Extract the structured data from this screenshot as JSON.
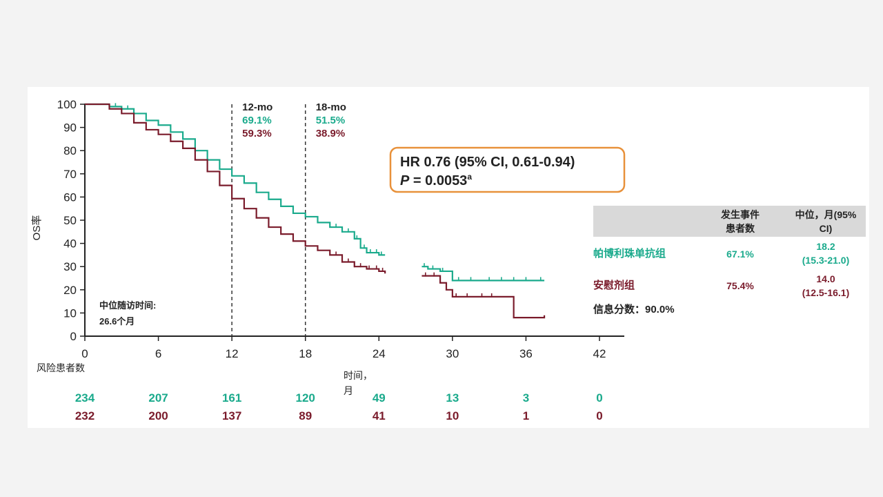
{
  "chart_data": {
    "type": "line",
    "subtype": "kaplan-meier",
    "ylabel": "OS率",
    "xlabel": "时间，月",
    "xlabel_lines": [
      "时间，",
      "月"
    ],
    "xlim": [
      0,
      42
    ],
    "ylim": [
      0,
      100
    ],
    "x_ticks": [
      0,
      6,
      12,
      18,
      24,
      30,
      36,
      42
    ],
    "y_ticks": [
      0,
      10,
      20,
      30,
      40,
      50,
      60,
      70,
      80,
      90,
      100
    ],
    "landmarks": [
      {
        "x": 12,
        "label": "12-mo",
        "values": [
          "69.1%",
          "59.3%"
        ]
      },
      {
        "x": 18,
        "label": "18-mo",
        "values": [
          "51.5%",
          "38.9%"
        ]
      }
    ],
    "hr_box": {
      "line1": "HR 0.76 (95% CI, 0.61-0.94)",
      "line2_prefix": "P",
      "line2_value": " = 0.0053",
      "line2_sup": "a"
    },
    "median_followup": {
      "label": "中位随访时间:",
      "value": "26.6个月"
    },
    "series": [
      {
        "name": "帕博利珠单抗组",
        "color": "#1aaa8c",
        "points": [
          [
            0,
            100
          ],
          [
            2,
            99
          ],
          [
            3,
            98
          ],
          [
            4,
            96
          ],
          [
            5,
            93
          ],
          [
            6,
            91
          ],
          [
            7,
            88
          ],
          [
            8,
            85
          ],
          [
            9,
            80
          ],
          [
            10,
            76
          ],
          [
            11,
            72
          ],
          [
            12,
            69.1
          ],
          [
            13,
            66
          ],
          [
            14,
            62
          ],
          [
            15,
            59
          ],
          [
            16,
            56
          ],
          [
            17,
            53
          ],
          [
            18,
            51.5
          ],
          [
            19,
            49
          ],
          [
            20,
            47
          ],
          [
            21,
            45
          ],
          [
            22,
            42
          ],
          [
            22.5,
            38
          ],
          [
            23,
            36
          ],
          [
            24,
            35
          ],
          [
            24.5,
            35
          ]
        ],
        "points2": [
          [
            27.5,
            30
          ],
          [
            28,
            29
          ],
          [
            29,
            28
          ],
          [
            30,
            24
          ],
          [
            31,
            24
          ],
          [
            36,
            24
          ],
          [
            37,
            24
          ],
          [
            37.5,
            24
          ]
        ],
        "censor": [
          2.5,
          3.5,
          20,
          20.5,
          21,
          21.5,
          22.2,
          22.8,
          23.3,
          23.8,
          24.2,
          27.7,
          28.4,
          29.2,
          30.5,
          31.5,
          33,
          34,
          35,
          36,
          37.2
        ],
        "risk": [
          "234",
          "207",
          "161",
          "120",
          "49",
          "13",
          "3",
          "0"
        ],
        "events": "67.1%",
        "median": "18.2",
        "ci": "(15.3-21.0)"
      },
      {
        "name": "安慰剂组",
        "color": "#7a1b2b",
        "points": [
          [
            0,
            100
          ],
          [
            2,
            98
          ],
          [
            3,
            96
          ],
          [
            4,
            92
          ],
          [
            5,
            89
          ],
          [
            6,
            87
          ],
          [
            7,
            84
          ],
          [
            8,
            81
          ],
          [
            9,
            76
          ],
          [
            10,
            71
          ],
          [
            11,
            65
          ],
          [
            12,
            59.3
          ],
          [
            13,
            55
          ],
          [
            14,
            51
          ],
          [
            15,
            47
          ],
          [
            16,
            44
          ],
          [
            17,
            41
          ],
          [
            18,
            38.9
          ],
          [
            19,
            37
          ],
          [
            20,
            35
          ],
          [
            21,
            32
          ],
          [
            22,
            30
          ],
          [
            23,
            29
          ],
          [
            24,
            28
          ],
          [
            24.5,
            27
          ]
        ],
        "points2": [
          [
            27.5,
            26
          ],
          [
            28,
            26
          ],
          [
            29,
            23
          ],
          [
            29.5,
            20
          ],
          [
            30,
            17
          ],
          [
            33,
            17
          ],
          [
            35,
            17
          ],
          [
            35,
            8
          ],
          [
            37,
            8
          ],
          [
            37.5,
            9
          ]
        ],
        "censor": [
          20.5,
          21,
          21.5,
          22,
          22.5,
          23.2,
          23.8,
          24.3,
          27.8,
          28.5,
          30.3,
          31.2,
          32.4,
          33.2
        ],
        "risk": [
          "232",
          "200",
          "137",
          "89",
          "41",
          "10",
          "1",
          "0"
        ],
        "events": "75.4%",
        "median": "14.0",
        "ci": "(12.5-16.1)"
      }
    ],
    "risk_table_label": "风险患者数",
    "legend_table": {
      "header_events": [
        "发生事件",
        "患者数"
      ],
      "header_median": [
        "中位，月(95%",
        "CI)"
      ],
      "info_fraction": "信息分数：90.0%"
    }
  }
}
